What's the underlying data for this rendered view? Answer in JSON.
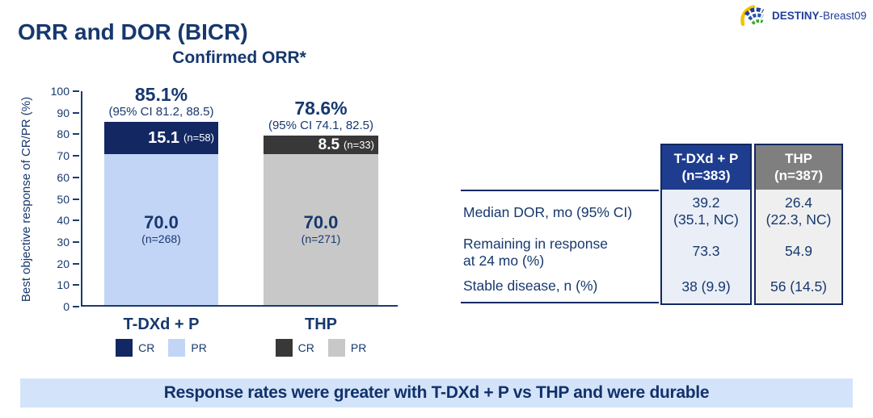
{
  "header": {
    "title": "ORR and DOR (BICR)",
    "logo_primary": "DESTINY",
    "logo_secondary": "-Breast09"
  },
  "chart_data": {
    "type": "bar",
    "stacked": true,
    "title": "Confirmed ORR*",
    "ylabel": "Best objective response of CR/PR (%)",
    "ylim": [
      0,
      100
    ],
    "ytick_step": 10,
    "grid": false,
    "legend_position": "below-each-category",
    "categories": [
      "T-DXd + P",
      "THP"
    ],
    "series": [
      {
        "name": "CR",
        "values": [
          15.1,
          8.5
        ],
        "labels": [
          "15.1",
          "8.5"
        ],
        "counts": [
          "(n=58)",
          "(n=33)"
        ],
        "colors": [
          "#132862",
          "#383838"
        ]
      },
      {
        "name": "PR",
        "values": [
          70.0,
          70.0
        ],
        "labels": [
          "70.0",
          "70.0"
        ],
        "counts": [
          "(n=268)",
          "(n=271)"
        ],
        "colors": [
          "#c3d5f6",
          "#c8c8c8"
        ]
      }
    ],
    "totals": [
      "85.1%",
      "78.6%"
    ],
    "ci": [
      "(95% CI 81.2, 88.5)",
      "(95% CI 74.1, 82.5)"
    ]
  },
  "table": {
    "col_headers": [
      {
        "line1": "T-DXd + P",
        "line2": "(n=383)"
      },
      {
        "line1": "THP",
        "line2": "(n=387)"
      }
    ],
    "rows": [
      {
        "label_line1": "Median DOR, mo (95% CI)",
        "label_line2": "",
        "values": [
          {
            "line1": "39.2",
            "line2": "(35.1, NC)"
          },
          {
            "line1": "26.4",
            "line2": "(22.3, NC)"
          }
        ]
      },
      {
        "label_line1": "Remaining in response",
        "label_line2": "at 24 mo (%)",
        "values": [
          {
            "line1": "73.3",
            "line2": ""
          },
          {
            "line1": "54.9",
            "line2": ""
          }
        ]
      },
      {
        "label_line1": "Stable disease, n (%)",
        "label_line2": "",
        "values": [
          {
            "line1": "38 (9.9)",
            "line2": ""
          },
          {
            "line1": "56 (14.5)",
            "line2": ""
          }
        ]
      }
    ]
  },
  "banner": {
    "text": "Response rates were greater with T-DXd + P vs THP and were durable"
  },
  "colors": {
    "navy_text": "#17386e",
    "axis_navy": "#1b3a6d",
    "border_navy": "#132862",
    "table_header_tdxd": "#1e3d8f",
    "table_header_thp": "#7f7f7f",
    "table_body_tdxd": "#e9eef7",
    "table_body_thp": "#efefef",
    "banner_bg": "#d3e4fa",
    "logo_blue": "#21409a",
    "logo_yellow": "#f2c400",
    "logo_green": "#3aaa35",
    "logo_teal": "#0aa79a"
  }
}
